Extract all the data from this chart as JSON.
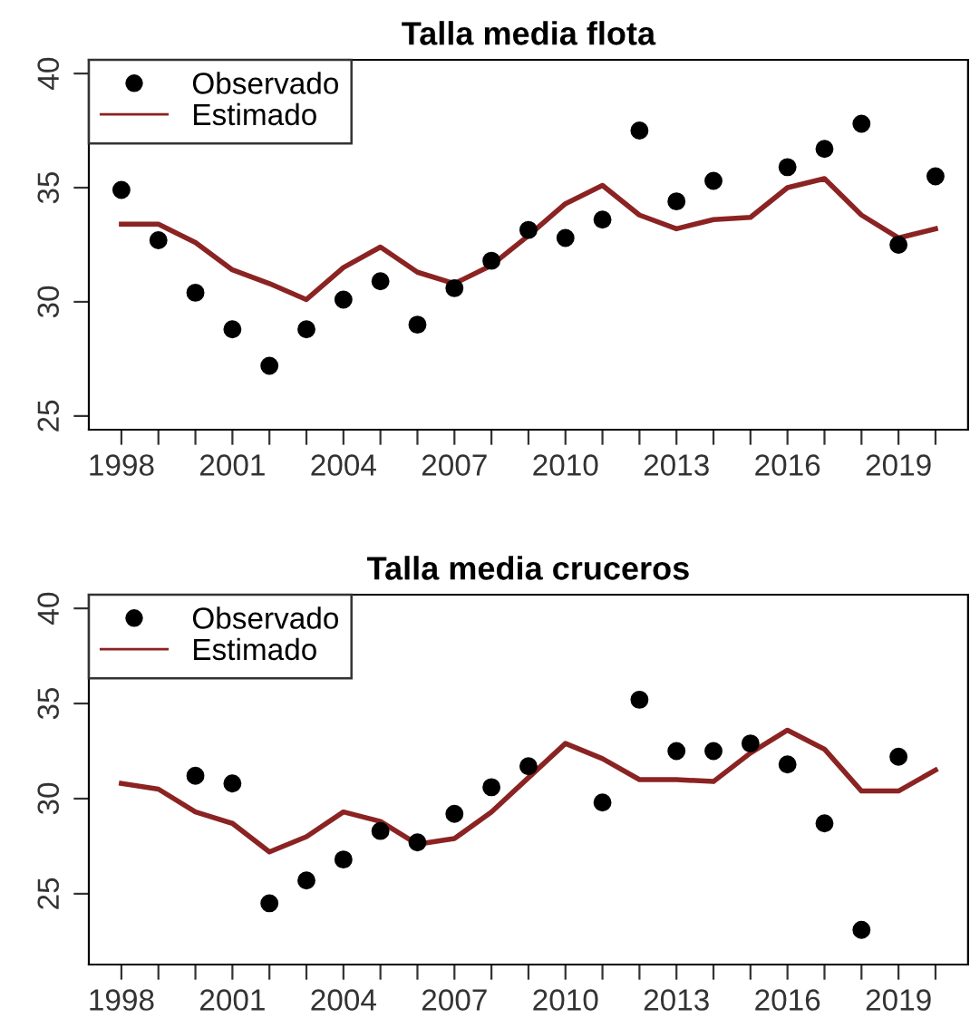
{
  "chart_data": [
    {
      "type": "line",
      "title": "Talla media flota",
      "x": [
        1998,
        1999,
        2000,
        2001,
        2002,
        2003,
        2004,
        2005,
        2006,
        2007,
        2008,
        2009,
        2010,
        2011,
        2012,
        2013,
        2014,
        2015,
        2016,
        2017,
        2018,
        2019,
        2020
      ],
      "series": [
        {
          "name": "Observado",
          "type": "scatter",
          "color": "#000000",
          "marker": "circle",
          "values": [
            34.9,
            32.7,
            30.4,
            28.8,
            27.2,
            28.8,
            30.1,
            30.9,
            29.0,
            30.6,
            31.8,
            33.15,
            32.8,
            33.6,
            37.5,
            34.4,
            35.3,
            null,
            35.9,
            36.7,
            37.8,
            32.5,
            35.5
          ]
        },
        {
          "name": "Estimado",
          "color": "#8b2323",
          "line_style": "solid",
          "values": [
            33.4,
            33.4,
            32.6,
            31.4,
            30.8,
            30.1,
            31.5,
            32.4,
            31.3,
            30.8,
            31.6,
            32.9,
            34.3,
            35.1,
            33.8,
            33.2,
            33.6,
            33.7,
            35.0,
            35.4,
            33.8,
            32.8,
            33.2
          ]
        }
      ],
      "xlim": [
        1997.12,
        2020.88
      ],
      "ylim": [
        24.4,
        40.6
      ],
      "xticks": [
        1998,
        {
          "value": 1999,
          "label": null
        },
        {
          "value": 2000,
          "label": null
        },
        2001,
        {
          "value": 2002,
          "label": null
        },
        {
          "value": 2003,
          "label": null
        },
        2004,
        {
          "value": 2005,
          "label": null
        },
        {
          "value": 2006,
          "label": null
        },
        2007,
        {
          "value": 2008,
          "label": null
        },
        {
          "value": 2009,
          "label": null
        },
        2010,
        {
          "value": 2011,
          "label": null
        },
        {
          "value": 2012,
          "label": null
        },
        2013,
        {
          "value": 2014,
          "label": null
        },
        {
          "value": 2015,
          "label": null
        },
        2016,
        {
          "value": 2017,
          "label": null
        },
        {
          "value": 2018,
          "label": null
        },
        2019,
        {
          "value": 2020,
          "label": null
        }
      ],
      "yticks": [
        25,
        30,
        35,
        40
      ],
      "grid": false,
      "legend": "top left"
    },
    {
      "type": "line",
      "title": "Talla media cruceros",
      "x": [
        1998,
        1999,
        2000,
        2001,
        2002,
        2003,
        2004,
        2005,
        2006,
        2007,
        2008,
        2009,
        2010,
        2011,
        2012,
        2013,
        2014,
        2015,
        2016,
        2017,
        2018,
        2019,
        2020
      ],
      "series": [
        {
          "name": "Observado",
          "type": "scatter",
          "color": "#000000",
          "marker": "circle",
          "values": [
            null,
            null,
            31.2,
            30.8,
            24.5,
            25.7,
            26.8,
            28.3,
            27.7,
            29.2,
            30.6,
            31.7,
            null,
            29.8,
            35.2,
            32.5,
            32.5,
            32.9,
            31.8,
            28.7,
            23.1,
            32.2,
            null
          ]
        },
        {
          "name": "Estimado",
          "color": "#8b2323",
          "line_style": "solid",
          "values": [
            30.8,
            30.5,
            29.3,
            28.7,
            27.2,
            28.0,
            29.3,
            28.8,
            27.6,
            27.9,
            29.3,
            31.1,
            32.9,
            32.1,
            31.0,
            31.0,
            30.9,
            32.4,
            33.6,
            32.6,
            30.4,
            30.4,
            31.5
          ]
        }
      ],
      "xlim": [
        1997.12,
        2020.88
      ],
      "ylim": [
        21.28,
        40.72
      ],
      "xticks": [
        1998,
        {
          "value": 1999,
          "label": null
        },
        {
          "value": 2000,
          "label": null
        },
        2001,
        {
          "value": 2002,
          "label": null
        },
        {
          "value": 2003,
          "label": null
        },
        2004,
        {
          "value": 2005,
          "label": null
        },
        {
          "value": 2006,
          "label": null
        },
        2007,
        {
          "value": 2008,
          "label": null
        },
        {
          "value": 2009,
          "label": null
        },
        2010,
        {
          "value": 2011,
          "label": null
        },
        {
          "value": 2012,
          "label": null
        },
        2013,
        {
          "value": 2014,
          "label": null
        },
        {
          "value": 2015,
          "label": null
        },
        2016,
        {
          "value": 2017,
          "label": null
        },
        {
          "value": 2018,
          "label": null
        },
        2019,
        {
          "value": 2020,
          "label": null
        }
      ],
      "yticks": [
        25,
        30,
        35,
        40
      ],
      "grid": false,
      "legend": "top left"
    }
  ]
}
